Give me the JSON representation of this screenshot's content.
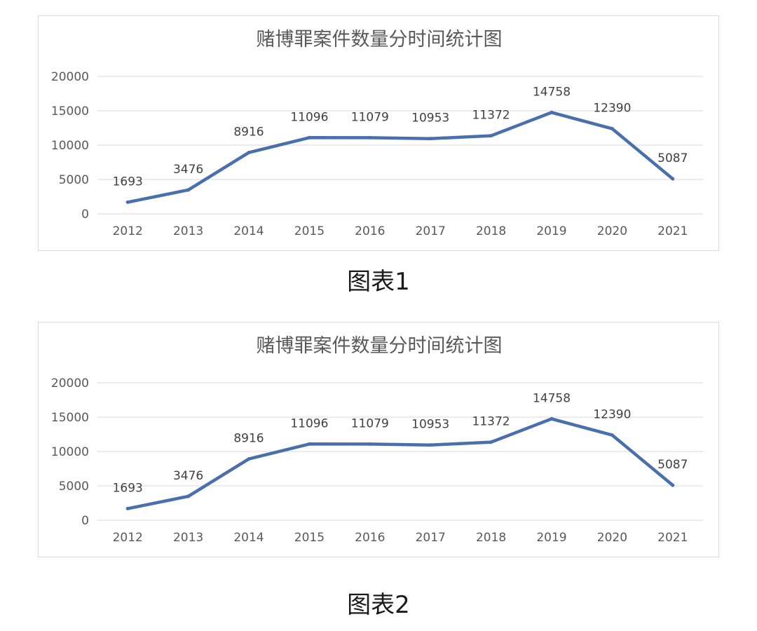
{
  "chart_data": [
    {
      "type": "line",
      "title": "赌博罪案件数量分时间统计图",
      "categories": [
        "2012",
        "2013",
        "2014",
        "2015",
        "2016",
        "2017",
        "2018",
        "2019",
        "2020",
        "2021"
      ],
      "series": [
        {
          "values": [
            1693,
            3476,
            8916,
            11096,
            11079,
            10953,
            11372,
            14758,
            12390,
            5087
          ]
        }
      ],
      "data_labels": [
        "1693",
        "3476",
        "8916",
        "11096",
        "11079",
        "10953",
        "11372",
        "14758",
        "12390",
        "5087"
      ],
      "y_ticks": [
        "0",
        "5000",
        "10000",
        "15000",
        "20000"
      ],
      "ylim": [
        0,
        20000
      ],
      "grid": true,
      "legend": "none",
      "line_color": "#4a6fad"
    },
    {
      "type": "line",
      "title": "赌博罪案件数量分时间统计图",
      "categories": [
        "2012",
        "2013",
        "2014",
        "2015",
        "2016",
        "2017",
        "2018",
        "2019",
        "2020",
        "2021"
      ],
      "series": [
        {
          "values": [
            1693,
            3476,
            8916,
            11096,
            11079,
            10953,
            11372,
            14758,
            12390,
            5087
          ]
        }
      ],
      "data_labels": [
        "1693",
        "3476",
        "8916",
        "11096",
        "11079",
        "10953",
        "11372",
        "14758",
        "12390",
        "5087"
      ],
      "y_ticks": [
        "0",
        "5000",
        "10000",
        "15000",
        "20000"
      ],
      "ylim": [
        0,
        20000
      ],
      "grid": true,
      "legend": "none",
      "line_color": "#4a6fad"
    }
  ],
  "captions": [
    "图表1",
    "图表2"
  ]
}
